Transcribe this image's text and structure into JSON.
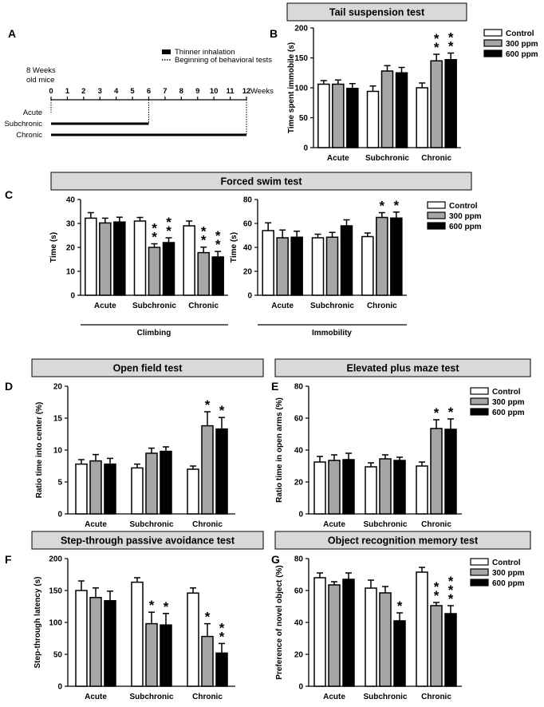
{
  "colors": {
    "control": "#ffffff",
    "p300": "#a6a6a6",
    "p600": "#000000",
    "panel_box": "#d9d9d9",
    "ink": "#000000"
  },
  "legend_labels": [
    "Control",
    "300 ppm",
    "600 ppm"
  ],
  "timeline": {
    "label": "A",
    "age_label": [
      "8 Weeks",
      "old mice"
    ],
    "ticks": [
      "0",
      "1",
      "2",
      "3",
      "4",
      "5",
      "6",
      "7",
      "8",
      "9",
      "10",
      "11",
      "12"
    ],
    "axis_unit": "Weeks",
    "legend": {
      "inhalation": "Thinner inhalation",
      "behavior": "Beginning of behavioral tests"
    },
    "groups": [
      {
        "name": "Acute",
        "end_week": 0
      },
      {
        "name": "Subchronic",
        "end_week": 6
      },
      {
        "name": "Chronic",
        "end_week": 12
      }
    ]
  },
  "chart_data": [
    {
      "id": "B",
      "type": "bar",
      "title": "Tail suspension test",
      "ylabel": "Time spent immobile (s)",
      "ylim": [
        0,
        200
      ],
      "yticks": [
        0,
        50,
        100,
        150,
        200
      ],
      "categories": [
        "Acute",
        "Subchronic",
        "Chronic"
      ],
      "series": [
        {
          "name": "Control",
          "values": [
            106,
            94,
            100
          ],
          "errors": [
            6,
            9,
            8
          ]
        },
        {
          "name": "300 ppm",
          "values": [
            106,
            128,
            145
          ],
          "errors": [
            7,
            9,
            11
          ]
        },
        {
          "name": "600 ppm",
          "values": [
            99,
            125,
            147
          ],
          "errors": [
            8,
            9,
            11
          ]
        }
      ],
      "annotations": [
        {
          "category": 2,
          "series": 1,
          "text": "**"
        },
        {
          "category": 2,
          "series": 2,
          "text": "**"
        }
      ]
    },
    {
      "id": "C1",
      "type": "bar",
      "title": "Forced swim test",
      "ylabel": "Time (s)",
      "ylim": [
        0,
        40
      ],
      "yticks": [
        0,
        10,
        20,
        30,
        40
      ],
      "categories": [
        "Acute",
        "Subchronic",
        "Chronic"
      ],
      "group_label": "Climbing",
      "series": [
        {
          "name": "Control",
          "values": [
            32.2,
            31,
            29
          ],
          "errors": [
            2.3,
            1.5,
            2
          ]
        },
        {
          "name": "300 ppm",
          "values": [
            30.2,
            20,
            17.8
          ],
          "errors": [
            2,
            1.5,
            2.3
          ]
        },
        {
          "name": "600 ppm",
          "values": [
            30.6,
            22,
            16
          ],
          "errors": [
            2,
            2,
            2.3
          ]
        }
      ],
      "annotations": [
        {
          "category": 1,
          "series": 1,
          "text": "**"
        },
        {
          "category": 1,
          "series": 2,
          "text": "**"
        },
        {
          "category": 2,
          "series": 1,
          "text": "**"
        },
        {
          "category": 2,
          "series": 2,
          "text": "**"
        }
      ]
    },
    {
      "id": "C2",
      "type": "bar",
      "title": "",
      "ylabel": "Time (s)",
      "ylim": [
        0,
        80
      ],
      "yticks": [
        0,
        20,
        40,
        60,
        80
      ],
      "categories": [
        "Acute",
        "Subchronic",
        "Chronic"
      ],
      "group_label": "Immobility",
      "series": [
        {
          "name": "Control",
          "values": [
            54,
            48,
            49
          ],
          "errors": [
            6.5,
            3,
            3
          ]
        },
        {
          "name": "300 ppm",
          "values": [
            48,
            48.5,
            65
          ],
          "errors": [
            6.5,
            4,
            4
          ]
        },
        {
          "name": "600 ppm",
          "values": [
            48.5,
            58,
            64.5
          ],
          "errors": [
            5,
            5,
            5
          ]
        }
      ],
      "annotations": [
        {
          "category": 2,
          "series": 1,
          "text": "*"
        },
        {
          "category": 2,
          "series": 2,
          "text": "*"
        }
      ]
    },
    {
      "id": "D",
      "type": "bar",
      "title": "Open field test",
      "ylabel": "Ratio time into center (%)",
      "ylim": [
        0,
        20
      ],
      "yticks": [
        0,
        5,
        10,
        15,
        20
      ],
      "categories": [
        "Acute",
        "Subchronic",
        "Chronic"
      ],
      "series": [
        {
          "name": "Control",
          "values": [
            7.8,
            7.2,
            7.0
          ],
          "errors": [
            0.7,
            0.6,
            0.5
          ]
        },
        {
          "name": "300 ppm",
          "values": [
            8.3,
            9.5,
            13.8
          ],
          "errors": [
            1.0,
            0.8,
            2.2
          ]
        },
        {
          "name": "600 ppm",
          "values": [
            7.8,
            9.8,
            13.3
          ],
          "errors": [
            0.9,
            0.7,
            1.8
          ]
        }
      ],
      "annotations": [
        {
          "category": 2,
          "series": 1,
          "text": "*"
        },
        {
          "category": 2,
          "series": 2,
          "text": "*"
        }
      ]
    },
    {
      "id": "E",
      "type": "bar",
      "title": "Elevated plus maze test",
      "ylabel": "Ratio time in open arms (%)",
      "ylim": [
        0,
        80
      ],
      "yticks": [
        0,
        20,
        40,
        60,
        80
      ],
      "categories": [
        "Acute",
        "Subchronic",
        "Chronic"
      ],
      "series": [
        {
          "name": "Control",
          "values": [
            32.5,
            29.5,
            30
          ],
          "errors": [
            3.5,
            2.5,
            2.5
          ]
        },
        {
          "name": "300 ppm",
          "values": [
            33.5,
            34.5,
            53.5
          ],
          "errors": [
            3.5,
            2.5,
            5.5
          ]
        },
        {
          "name": "600 ppm",
          "values": [
            34,
            33.5,
            53
          ],
          "errors": [
            4,
            2,
            6.5
          ]
        }
      ],
      "annotations": [
        {
          "category": 2,
          "series": 1,
          "text": "*"
        },
        {
          "category": 2,
          "series": 2,
          "text": "*"
        }
      ]
    },
    {
      "id": "F",
      "type": "bar",
      "title": "Step-through passive avoidance test",
      "ylabel": "Step-through latency (s)",
      "ylim": [
        0,
        200
      ],
      "yticks": [
        0,
        50,
        100,
        150,
        200
      ],
      "categories": [
        "Acute",
        "Subchronic",
        "Chronic"
      ],
      "series": [
        {
          "name": "Control",
          "values": [
            150,
            163,
            146
          ],
          "errors": [
            15,
            7,
            8
          ]
        },
        {
          "name": "300 ppm",
          "values": [
            139,
            98,
            78
          ],
          "errors": [
            15,
            18,
            20
          ]
        },
        {
          "name": "600 ppm",
          "values": [
            134,
            96,
            52
          ],
          "errors": [
            15,
            18,
            15
          ]
        }
      ],
      "annotations": [
        {
          "category": 1,
          "series": 1,
          "text": "*"
        },
        {
          "category": 1,
          "series": 2,
          "text": "*"
        },
        {
          "category": 2,
          "series": 1,
          "text": "*"
        },
        {
          "category": 2,
          "series": 2,
          "text": "**"
        }
      ]
    },
    {
      "id": "G",
      "type": "bar",
      "title": "Object recognition memory test",
      "ylabel": "Preference of novel object (%)",
      "ylim": [
        0,
        80
      ],
      "yticks": [
        0,
        20,
        40,
        60,
        80
      ],
      "categories": [
        "Acute",
        "Subchronic",
        "Chronic"
      ],
      "series": [
        {
          "name": "Control",
          "values": [
            68,
            61.5,
            71.5
          ],
          "errors": [
            3,
            5,
            3
          ]
        },
        {
          "name": "300 ppm",
          "values": [
            63.5,
            58.5,
            50.5
          ],
          "errors": [
            2,
            4,
            2
          ]
        },
        {
          "name": "600 ppm",
          "values": [
            67,
            41,
            45.5
          ],
          "errors": [
            4,
            5,
            5
          ]
        }
      ],
      "annotations": [
        {
          "category": 1,
          "series": 2,
          "text": "*"
        },
        {
          "category": 2,
          "series": 1,
          "text": "**"
        },
        {
          "category": 2,
          "series": 2,
          "text": "***"
        }
      ]
    }
  ]
}
